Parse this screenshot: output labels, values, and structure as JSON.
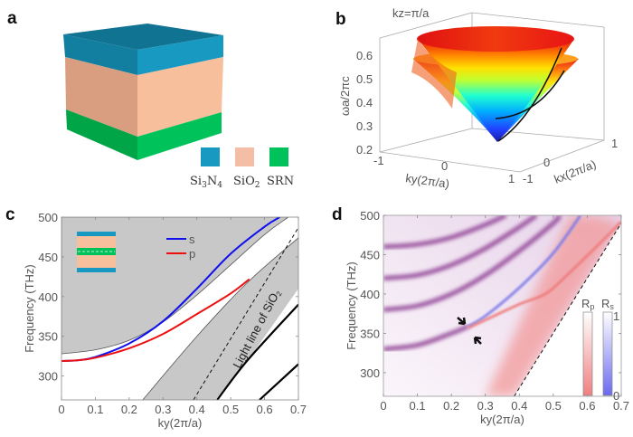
{
  "panels": {
    "a": {
      "label": "a",
      "legend": [
        {
          "name": "Si3N4",
          "base": "Si",
          "sub1": "3",
          "mid": "N",
          "sub2": "4",
          "color": "#1799c1"
        },
        {
          "name": "SiO2",
          "base": "SiO",
          "sub1": "2",
          "color": "#f3bea5"
        },
        {
          "name": "SRN",
          "base": "SRN",
          "color": "#00c25a"
        }
      ],
      "colors": {
        "si3n4_top": "#0f7391",
        "si3n4_left": "#127fa0",
        "si3n4_right": "#1799c1",
        "sio2_left": "#d99e7f",
        "sio2_right": "#f8bf9c",
        "srn_left": "#00a548",
        "srn_right": "#00c25a"
      }
    },
    "b": {
      "label": "b",
      "title": "kz=π/a",
      "ylabel": "ωa/2πc",
      "yticks": [
        "0.6",
        "0.5",
        "0.4",
        "0.3",
        "0.2"
      ],
      "xlabel": "ky(2π/a)",
      "xticks": [
        "-1",
        "0",
        "1"
      ],
      "zlabel": "kx(2π/a)",
      "zticks": [
        "-1",
        "0",
        "1"
      ],
      "colormap": "jet"
    },
    "c": {
      "label": "c"
    },
    "d": {
      "label": "d"
    }
  },
  "chart_data": [
    {
      "panel": "c",
      "type": "line",
      "xlabel": "ky(2π/a)",
      "ylabel": "Frequency (THz)",
      "xlim": [
        0,
        0.7
      ],
      "ylim": [
        270,
        500
      ],
      "xticks": [
        "0",
        "0.1",
        "0.2",
        "0.3",
        "0.4",
        "0.5",
        "0.6",
        "0.7"
      ],
      "yticks": [
        "300",
        "350",
        "400",
        "450",
        "500"
      ],
      "legend": {
        "placement": "top-left",
        "entries": [
          {
            "name": "s",
            "color": "#1010ee"
          },
          {
            "name": "p",
            "color": "#ee1010"
          }
        ]
      },
      "annotation": {
        "text": "Light line of SiO",
        "sub": "2"
      },
      "series": [
        {
          "name": "s",
          "color": "#1010ee",
          "x": [
            0,
            0.05,
            0.1,
            0.2,
            0.3,
            0.4,
            0.5,
            0.6,
            0.645
          ],
          "y": [
            319,
            320,
            324,
            341,
            369,
            410,
            454,
            488,
            500
          ]
        },
        {
          "name": "p",
          "color": "#ee1010",
          "x": [
            0,
            0.05,
            0.1,
            0.2,
            0.3,
            0.4,
            0.5,
            0.555
          ],
          "y": [
            319,
            320,
            323,
            335,
            353,
            378,
            404,
            422
          ]
        }
      ],
      "regions": {
        "upper_band_boundary": {
          "x": [
            0,
            0.1,
            0.2,
            0.3,
            0.4,
            0.5,
            0.6,
            0.67
          ],
          "y": [
            328,
            333,
            345,
            368,
            402,
            440,
            478,
            500
          ]
        },
        "lower_band_left": {
          "x": [
            0.24,
            0.4,
            0.55,
            0.7
          ],
          "y": [
            270,
            350,
            418,
            474
          ]
        },
        "lower_band_right": {
          "x": [
            0.455,
            0.55,
            0.7
          ],
          "y": [
            270,
            320,
            410
          ]
        },
        "fill": "#c8c8c8"
      },
      "light_line": {
        "x": [
          0.39,
          0.7
        ],
        "y": [
          270,
          487
        ]
      },
      "black_lines": [
        {
          "x": [
            0.46,
            0.55,
            0.7
          ],
          "y": [
            270,
            320,
            390
          ]
        },
        {
          "x": [
            0.585,
            0.7
          ],
          "y": [
            270,
            315
          ]
        }
      ]
    },
    {
      "panel": "d",
      "type": "heatmap",
      "xlabel": "ky(2π/a)",
      "ylabel": "Frequency (THz)",
      "xlim": [
        0,
        0.7
      ],
      "ylim": [
        270,
        500
      ],
      "xticks": [
        "0",
        "0.1",
        "0.2",
        "0.3",
        "0.4",
        "0.5",
        "0.6",
        "0.7"
      ],
      "yticks": [
        "300",
        "350",
        "400",
        "450",
        "500"
      ],
      "colorbars": [
        {
          "label": "R",
          "sub": "p",
          "color_low": "#f08080",
          "color_high": "#ffffff"
        },
        {
          "label": "R",
          "sub": "s",
          "color_low": "#6a6af0",
          "color_high": "#ffffff"
        }
      ],
      "colorbar_ticks": [
        "1",
        "0"
      ],
      "resonances": [
        {
          "kind": "s+p",
          "x": [
            0,
            0.1,
            0.2,
            0.3,
            0.36
          ],
          "y": [
            460,
            463,
            472,
            488,
            500
          ]
        },
        {
          "kind": "s+p",
          "x": [
            0,
            0.1,
            0.2,
            0.3,
            0.4,
            0.45
          ],
          "y": [
            420,
            424,
            437,
            458,
            485,
            500
          ]
        },
        {
          "kind": "s+p",
          "x": [
            0,
            0.1,
            0.2,
            0.3,
            0.4,
            0.5,
            0.52
          ],
          "y": [
            380,
            385,
            400,
            424,
            455,
            490,
            500
          ]
        },
        {
          "kind": "s+p",
          "x": [
            0,
            0.1,
            0.2,
            0.25
          ],
          "y": [
            330,
            335,
            350,
            359
          ]
        },
        {
          "kind": "s",
          "x": [
            0.25,
            0.3,
            0.4,
            0.5,
            0.58
          ],
          "y": [
            359,
            372,
            408,
            452,
            500
          ]
        },
        {
          "kind": "p",
          "x": [
            0.25,
            0.3,
            0.4,
            0.48,
            0.55,
            0.65,
            0.7
          ],
          "y": [
            357,
            367,
            387,
            401,
            428,
            470,
            492
          ]
        }
      ],
      "light_line": {
        "x": [
          0.385,
          0.7
        ],
        "y": [
          270,
          490
        ]
      }
    }
  ]
}
